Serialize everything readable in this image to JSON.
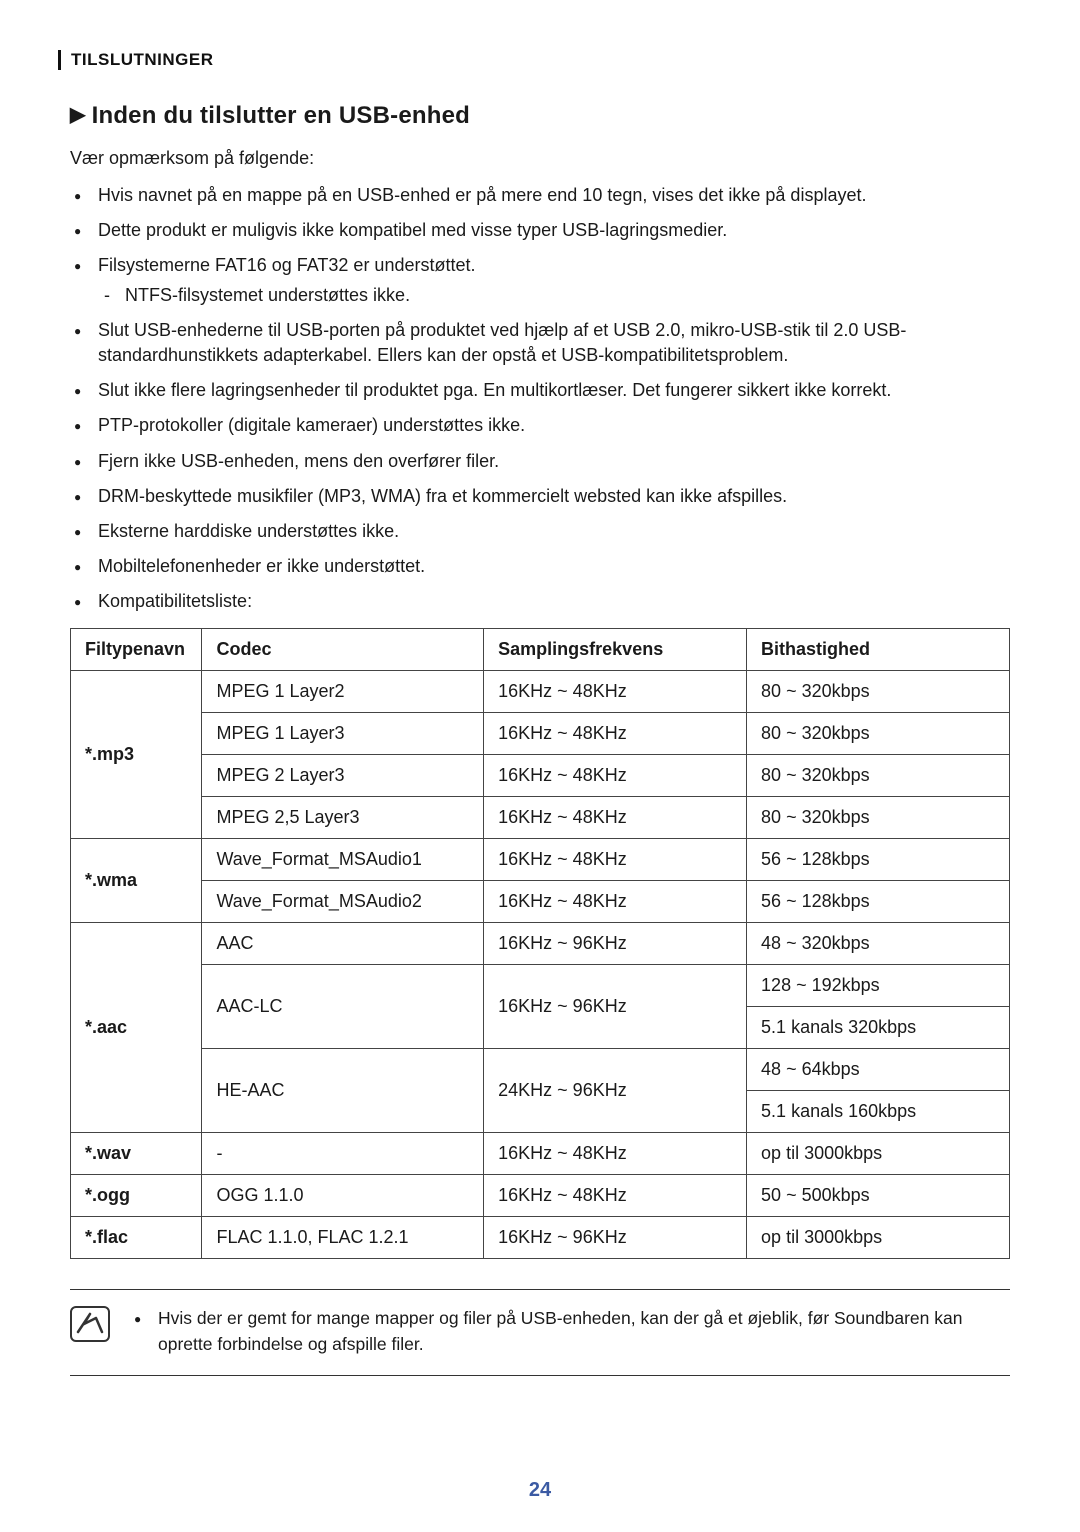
{
  "section_label": "TILSLUTNINGER",
  "heading": "Inden du tilslutter en USB-enhed",
  "intro": "Vær opmærksom på følgende:",
  "bullets": [
    {
      "text": "Hvis navnet på en mappe på en USB-enhed er på mere end 10 tegn, vises det ikke på displayet."
    },
    {
      "text": "Dette produkt er muligvis ikke kompatibel med visse typer USB-lagringsmedier."
    },
    {
      "text": "Filsystemerne FAT16 og FAT32 er understøttet.",
      "sub": "NTFS-filsystemet understøttes ikke."
    },
    {
      "text": "Slut USB-enhederne til USB-porten på produktet ved hjælp af et USB 2.0, mikro-USB-stik til 2.0 USB-standardhunstikkets adapterkabel. Ellers kan der opstå et USB-kompatibilitetsproblem."
    },
    {
      "text": "Slut ikke flere lagringsenheder til produktet pga. En multikortlæser. Det fungerer sikkert ikke korrekt."
    },
    {
      "text": "PTP-protokoller (digitale kameraer) understøttes ikke."
    },
    {
      "text": "Fjern ikke USB-enheden, mens den overfører filer."
    },
    {
      "text": "DRM-beskyttede musikfiler (MP3, WMA) fra et kommercielt websted kan ikke afspilles."
    },
    {
      "text": "Eksterne harddiske understøttes ikke."
    },
    {
      "text": "Mobiltelefonenheder er ikke understøttet."
    },
    {
      "text": "Kompatibilitetsliste:"
    }
  ],
  "table": {
    "headers": {
      "ft": "Filtypenavn",
      "codec": "Codec",
      "freq": "Samplingsfrekvens",
      "bit": "Bithastighed"
    },
    "groups": [
      {
        "ft": "*.mp3",
        "rows": [
          {
            "codec": "MPEG 1 Layer2",
            "freq": "16KHz ~ 48KHz",
            "bit": "80 ~ 320kbps"
          },
          {
            "codec": "MPEG 1 Layer3",
            "freq": "16KHz ~ 48KHz",
            "bit": "80 ~ 320kbps"
          },
          {
            "codec": "MPEG 2 Layer3",
            "freq": "16KHz ~ 48KHz",
            "bit": "80 ~ 320kbps"
          },
          {
            "codec": "MPEG 2,5 Layer3",
            "freq": "16KHz ~ 48KHz",
            "bit": "80 ~ 320kbps"
          }
        ]
      },
      {
        "ft": "*.wma",
        "rows": [
          {
            "codec": "Wave_Format_MSAudio1",
            "freq": "16KHz ~ 48KHz",
            "bit": "56 ~ 128kbps"
          },
          {
            "codec": "Wave_Format_MSAudio2",
            "freq": "16KHz ~ 48KHz",
            "bit": "56 ~ 128kbps"
          }
        ]
      },
      {
        "ft": "*.aac",
        "rows": [
          {
            "codec": "AAC",
            "freq": "16KHz ~ 96KHz",
            "bits": [
              "48 ~ 320kbps"
            ]
          },
          {
            "codec": "AAC-LC",
            "freq": "16KHz ~ 96KHz",
            "bits": [
              "128 ~ 192kbps",
              "5.1 kanals 320kbps"
            ]
          },
          {
            "codec": "HE-AAC",
            "freq": "24KHz ~ 96KHz",
            "bits": [
              "48 ~ 64kbps",
              "5.1 kanals 160kbps"
            ]
          }
        ]
      },
      {
        "ft": "*.wav",
        "rows": [
          {
            "codec": "-",
            "freq": "16KHz ~ 48KHz",
            "bit": "op til 3000kbps"
          }
        ]
      },
      {
        "ft": "*.ogg",
        "rows": [
          {
            "codec": "OGG 1.1.0",
            "freq": "16KHz ~ 48KHz",
            "bit": "50 ~ 500kbps"
          }
        ]
      },
      {
        "ft": "*.flac",
        "rows": [
          {
            "codec": "FLAC 1.1.0, FLAC 1.2.1",
            "freq": "16KHz ~ 96KHz",
            "bit": "op til 3000kbps"
          }
        ]
      }
    ]
  },
  "note": "Hvis der er gemt for mange mapper og filer på USB-enheden, kan der gå et øjeblik, før Soundbaren kan oprette forbindelse og afspille filer.",
  "page_number": "24",
  "colors": {
    "text": "#1a1a1a",
    "border": "#444444",
    "pagenum": "#3b5aa3",
    "bg": "#ffffff"
  }
}
